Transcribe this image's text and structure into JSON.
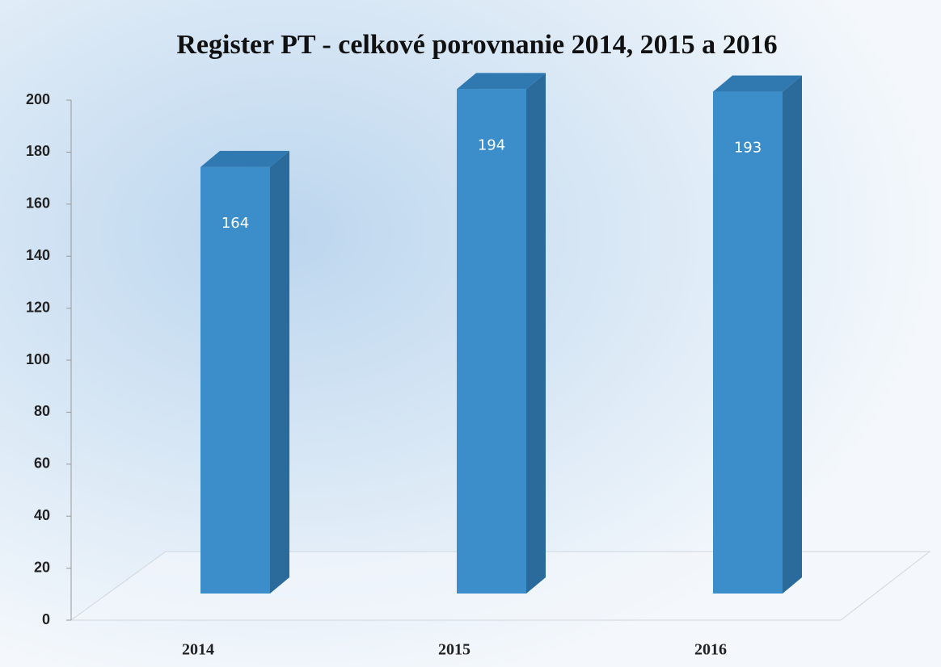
{
  "chart_data": {
    "type": "bar3d",
    "title": "Register PT - celkové porovnanie  2014, 2015 a 2016",
    "categories": [
      "2014",
      "2015",
      "2016"
    ],
    "values": [
      164,
      194,
      193
    ],
    "color": "#3b8ec9",
    "ylim": [
      0,
      200
    ],
    "yticks": [
      0,
      20,
      40,
      60,
      80,
      100,
      120,
      140,
      160,
      180,
      200
    ],
    "data_labels": true
  }
}
